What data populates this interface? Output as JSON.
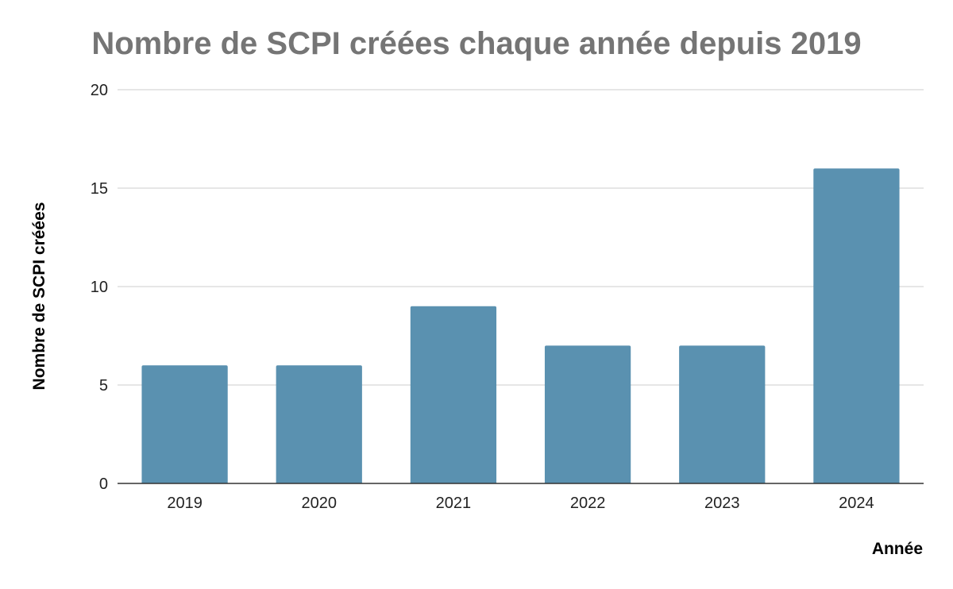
{
  "chart_data": {
    "type": "bar",
    "title": "Nombre de SCPI créées chaque année depuis 2019",
    "xlabel": "Année",
    "ylabel": "Nombre de SCPI créées",
    "categories": [
      "2019",
      "2020",
      "2021",
      "2022",
      "2023",
      "2024"
    ],
    "values": [
      6,
      6,
      9,
      7,
      7,
      16
    ],
    "ylim": [
      0,
      20
    ],
    "yticks": [
      "0",
      "5",
      "10",
      "15",
      "20"
    ],
    "grid": true,
    "legend": "none",
    "bar_color": "#5a91b0"
  }
}
